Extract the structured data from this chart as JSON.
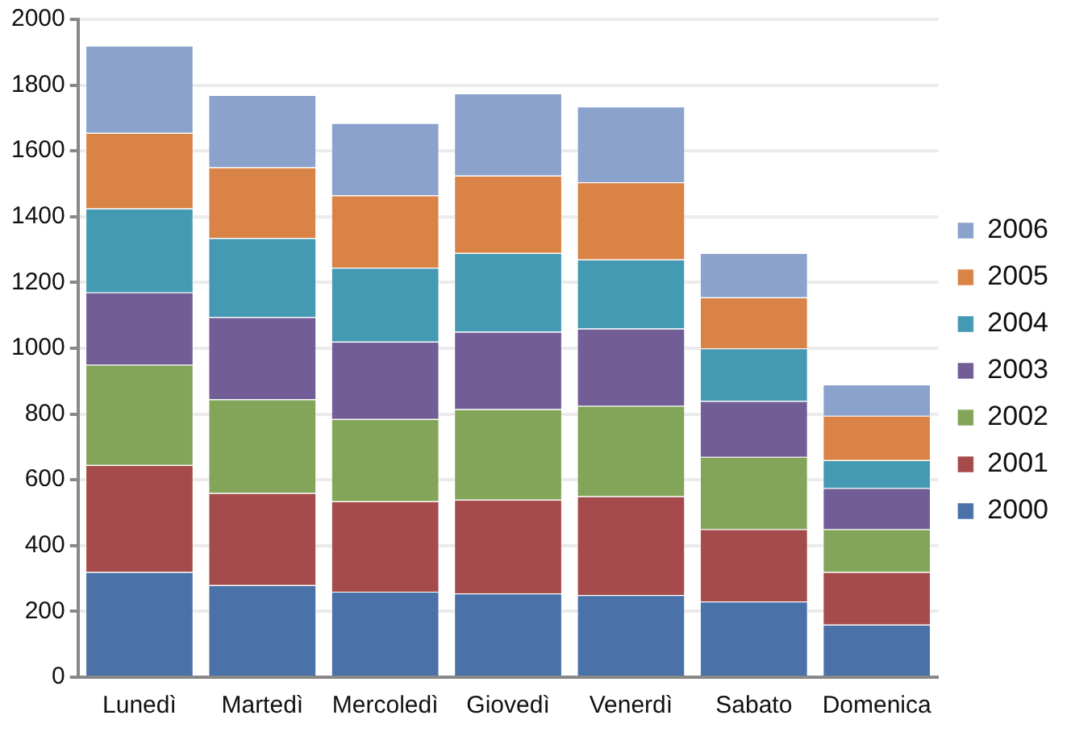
{
  "chart_data": {
    "type": "bar",
    "stacked": true,
    "categories": [
      "Lunedì",
      "Martedì",
      "Mercoledì",
      "Giovedì",
      "Venerdì",
      "Sabato",
      "Domenica"
    ],
    "series": [
      {
        "name": "2000",
        "color": "#4a72a8",
        "values": [
          320,
          280,
          260,
          255,
          250,
          230,
          160
        ]
      },
      {
        "name": "2001",
        "color": "#a64b4b",
        "values": [
          325,
          280,
          275,
          285,
          300,
          220,
          160
        ]
      },
      {
        "name": "2002",
        "color": "#83a55a",
        "values": [
          305,
          285,
          250,
          275,
          275,
          220,
          130
        ]
      },
      {
        "name": "2003",
        "color": "#725d96",
        "values": [
          220,
          250,
          235,
          235,
          235,
          170,
          125
        ]
      },
      {
        "name": "2004",
        "color": "#459ab3",
        "values": [
          255,
          240,
          225,
          240,
          210,
          160,
          85
        ]
      },
      {
        "name": "2005",
        "color": "#da8346",
        "values": [
          230,
          215,
          220,
          235,
          235,
          155,
          135
        ]
      },
      {
        "name": "2006",
        "color": "#8aa2cc",
        "values": [
          265,
          220,
          220,
          250,
          230,
          135,
          95
        ]
      }
    ],
    "ylim": [
      0,
      2000
    ],
    "yticks": [
      0,
      200,
      400,
      600,
      800,
      1000,
      1200,
      1400,
      1600,
      1800,
      2000
    ],
    "grid": "y",
    "legend": "right"
  }
}
